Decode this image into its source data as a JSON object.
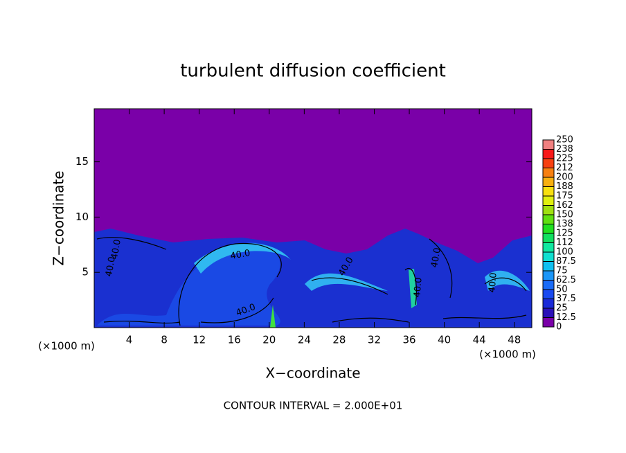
{
  "chart_data": {
    "type": "heatmap",
    "title": "turbulent diffusion coefficient",
    "x_label": "X−coordinate",
    "y_label": "Z−coordinate",
    "x_unit": "(×1000 m)",
    "x_unit_right": "(×1000 m)",
    "footer": "CONTOUR INTERVAL = 2.000E+01",
    "xlim": [
      0,
      50
    ],
    "xticks": [
      4,
      8,
      12,
      16,
      20,
      24,
      28,
      32,
      36,
      40,
      44,
      48
    ],
    "ylim": [
      0,
      19.8
    ],
    "yticks": [
      5,
      10,
      15
    ],
    "clim": [
      0,
      250
    ],
    "colorbar_ticks": [
      0,
      12.5,
      25,
      37.5,
      50,
      62.5,
      75,
      87.5,
      100,
      {
        "value": 112.5,
        "label": "112"
      },
      125,
      {
        "value": 137.5,
        "label": "138"
      },
      150,
      {
        "value": 162.5,
        "label": "162"
      },
      175,
      {
        "value": 187.5,
        "label": "188"
      },
      200,
      {
        "value": 212.5,
        "label": "212"
      },
      225,
      {
        "value": 237.5,
        "label": "238"
      },
      250
    ],
    "colorbar_colors": [
      "#7a00a8",
      "#2a10b8",
      "#1a2ad8",
      "#1a4af0",
      "#1a6cf8",
      "#1a96f8",
      "#10c0f0",
      "#10e0d0",
      "#10e8a0",
      "#10e060",
      "#20e020",
      "#60e010",
      "#a0e010",
      "#e0f010",
      "#f8e010",
      "#f8b010",
      "#f88010",
      "#f84010",
      "#f81818",
      "#f08080"
    ],
    "contour_labels": [
      "40.0",
      "40.0",
      "40.0",
      "40.0",
      "40.0",
      "40.0",
      "40.0",
      "40.0"
    ]
  }
}
